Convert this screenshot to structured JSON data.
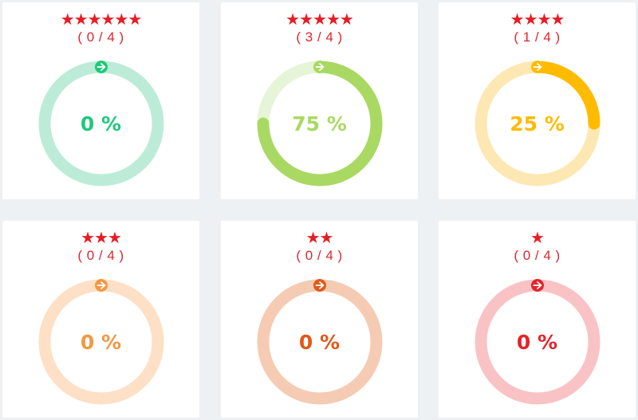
{
  "cards": [
    {
      "stars": "★★★★★★",
      "count": "( 0 / 4 )",
      "percent_label": "0 %",
      "progress": 0,
      "color": "#1fc97a",
      "track": "#bcecd8"
    },
    {
      "stars": "★★★★★",
      "count": "( 3 / 4 )",
      "percent_label": "75 %",
      "progress": 0.75,
      "color": "#a9d962",
      "track": "#e6f4d7"
    },
    {
      "stars": "★★★★",
      "count": "( 1 / 4 )",
      "percent_label": "25 %",
      "progress": 0.25,
      "color": "#ffbb00",
      "track": "#fde8b3"
    },
    {
      "stars": "★★★",
      "count": "( 0 / 4 )",
      "percent_label": "0 %",
      "progress": 0,
      "color": "#f59742",
      "track": "#fde0c6"
    },
    {
      "stars": "★★",
      "count": "( 0 / 4 )",
      "percent_label": "0 %",
      "progress": 0,
      "color": "#e2581a",
      "track": "#f6cbb3"
    },
    {
      "stars": "★",
      "count": "( 0 / 4 )",
      "percent_label": "0 %",
      "progress": 0,
      "color": "#e3242b",
      "track": "#f9c3c6"
    }
  ],
  "icons": {
    "arrow": "arrow-right-icon",
    "star": "star-icon"
  }
}
